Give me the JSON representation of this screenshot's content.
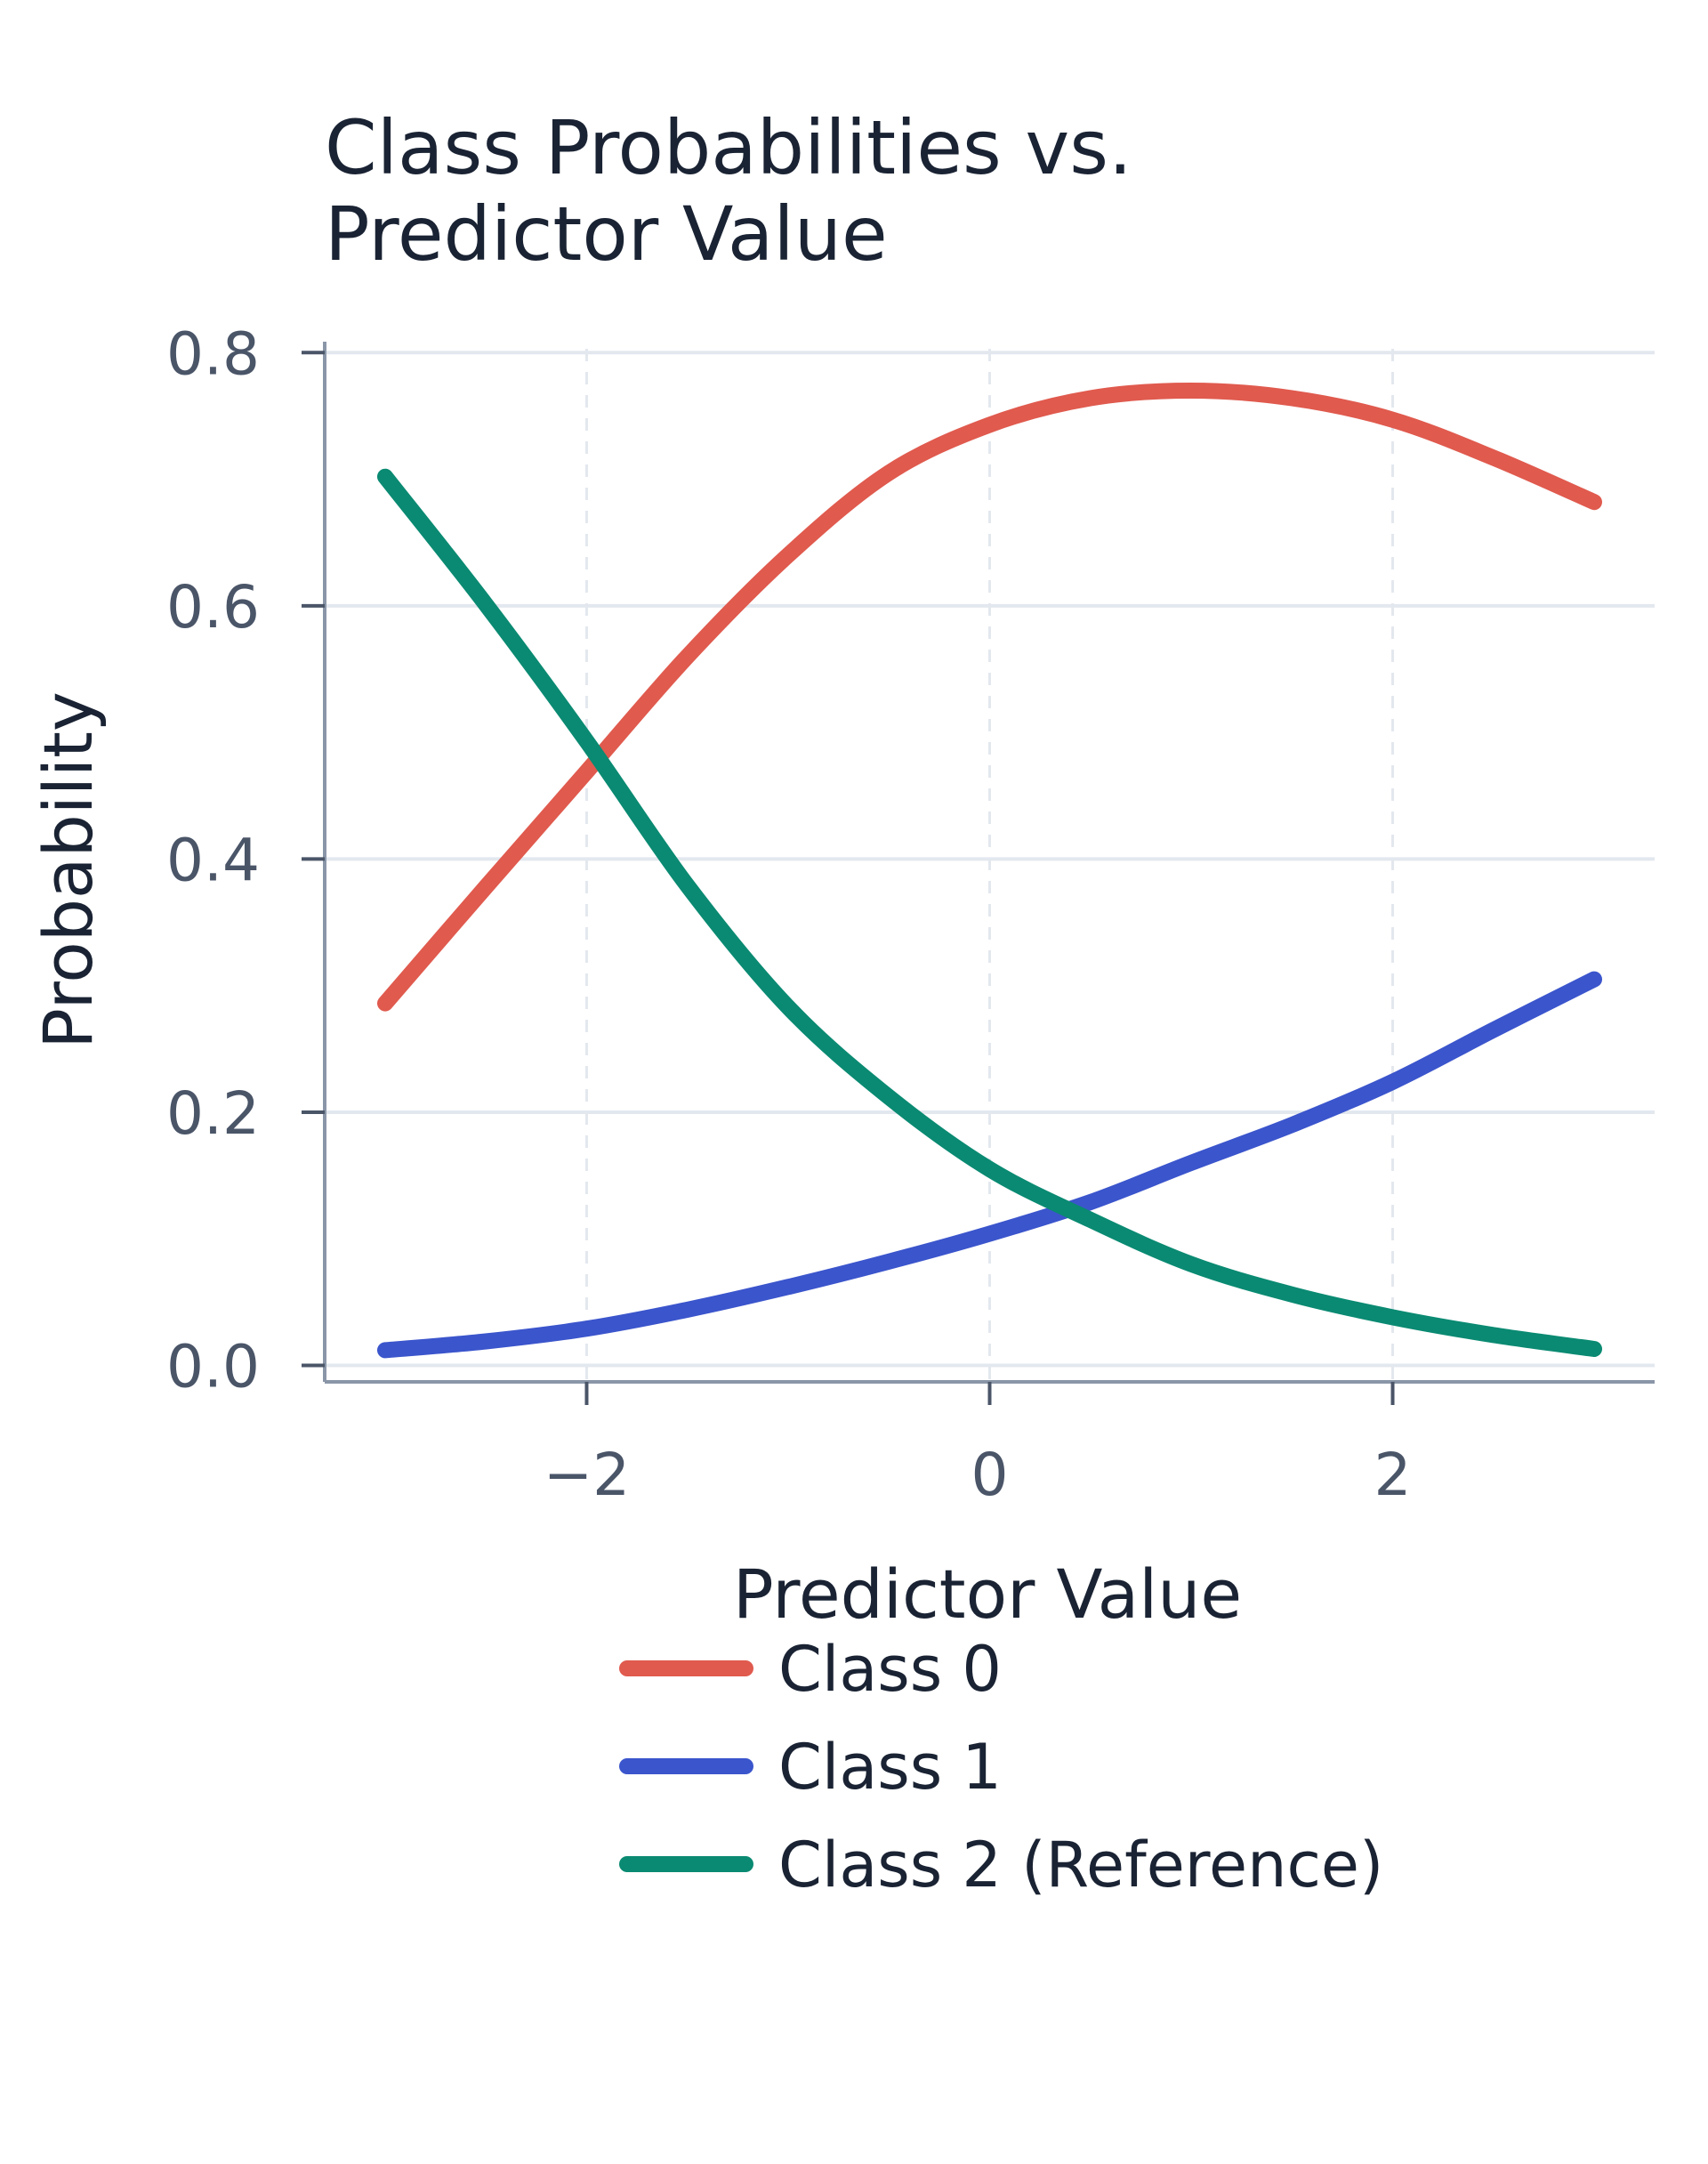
{
  "chart_data": {
    "type": "line",
    "title_lines": [
      "Class Probabilities vs.",
      "Predictor Value"
    ],
    "xlabel": "Predictor Value",
    "ylabel": "Probability",
    "xlim": [
      -3.3,
      3.3
    ],
    "ylim": [
      -0.013,
      0.803
    ],
    "xticks": [
      -2,
      0,
      2
    ],
    "xtick_labels": [
      "−2",
      "0",
      "2"
    ],
    "yticks": [
      0.0,
      0.2,
      0.4,
      0.6,
      0.8
    ],
    "ytick_labels": [
      "0.0",
      "0.2",
      "0.4",
      "0.6",
      "0.8"
    ],
    "grid": true,
    "legend_position": "bottom",
    "x": [
      -3.0,
      -2.5,
      -2.0,
      -1.5,
      -1.0,
      -0.5,
      0.0,
      0.5,
      1.0,
      1.5,
      2.0,
      2.5,
      3.0
    ],
    "series": [
      {
        "name": "Class 0",
        "color": "#e05a4e",
        "values": [
          0.286,
          0.378,
          0.469,
          0.56,
          0.64,
          0.705,
          0.743,
          0.764,
          0.77,
          0.764,
          0.747,
          0.717,
          0.682
        ]
      },
      {
        "name": "Class 1",
        "color": "#3b55cc",
        "values": [
          0.012,
          0.019,
          0.029,
          0.044,
          0.062,
          0.082,
          0.104,
          0.129,
          0.16,
          0.19,
          0.224,
          0.265,
          0.305
        ]
      },
      {
        "name": "Class 2 (Reference)",
        "color": "#0a8a72",
        "values": [
          0.702,
          0.601,
          0.493,
          0.379,
          0.283,
          0.212,
          0.155,
          0.115,
          0.08,
          0.056,
          0.038,
          0.024,
          0.013
        ]
      }
    ]
  }
}
